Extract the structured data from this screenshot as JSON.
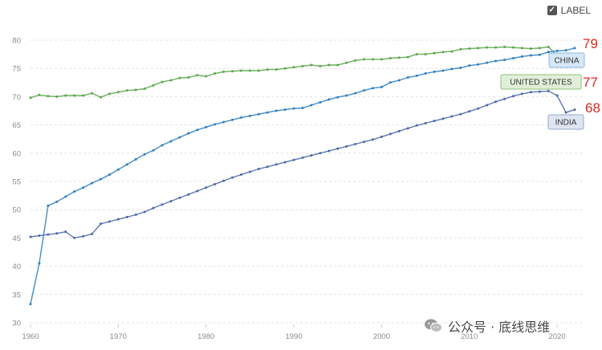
{
  "toggle": {
    "label": "LABEL",
    "checked": true
  },
  "watermark": "公众号 · 底线思维",
  "chart_data": {
    "type": "line",
    "title": "",
    "xlabel": "",
    "ylabel": "",
    "xlim": [
      1960,
      2022
    ],
    "ylim": [
      30,
      80
    ],
    "x_ticks": [
      1960,
      1970,
      1980,
      1990,
      2000,
      2010,
      2020
    ],
    "y_ticks": [
      30,
      35,
      40,
      45,
      50,
      55,
      60,
      65,
      70,
      75,
      80
    ],
    "grid": true,
    "series": [
      {
        "name": "UNITED STATES",
        "color": "#5aa64a",
        "end_value": "77",
        "label_fill": "#e1efd8",
        "label_stroke": "#8cc27a",
        "label_text_color": "#333333",
        "x": [
          1960,
          1961,
          1962,
          1963,
          1964,
          1965,
          1966,
          1967,
          1968,
          1969,
          1970,
          1971,
          1972,
          1973,
          1974,
          1975,
          1976,
          1977,
          1978,
          1979,
          1980,
          1981,
          1982,
          1983,
          1984,
          1985,
          1986,
          1987,
          1988,
          1989,
          1990,
          1991,
          1992,
          1993,
          1994,
          1995,
          1996,
          1997,
          1998,
          1999,
          2000,
          2001,
          2002,
          2003,
          2004,
          2005,
          2006,
          2007,
          2008,
          2009,
          2010,
          2011,
          2012,
          2013,
          2014,
          2015,
          2016,
          2017,
          2018,
          2019,
          2020,
          2021,
          2022
        ],
        "y": [
          69.8,
          70.3,
          70.1,
          70.0,
          70.2,
          70.2,
          70.2,
          70.6,
          69.9,
          70.5,
          70.8,
          71.1,
          71.2,
          71.4,
          72.0,
          72.6,
          72.9,
          73.3,
          73.4,
          73.8,
          73.6,
          74.1,
          74.4,
          74.5,
          74.6,
          74.6,
          74.6,
          74.8,
          74.8,
          75.0,
          75.2,
          75.4,
          75.6,
          75.4,
          75.6,
          75.6,
          76.0,
          76.4,
          76.6,
          76.6,
          76.6,
          76.8,
          76.9,
          77.0,
          77.5,
          77.5,
          77.7,
          77.9,
          78.0,
          78.4,
          78.5,
          78.6,
          78.7,
          78.7,
          78.8,
          78.7,
          78.6,
          78.5,
          78.6,
          78.8,
          77.3,
          76.4,
          77.4
        ]
      },
      {
        "name": "CHINA",
        "color": "#2f7fc0",
        "end_value": "79",
        "label_fill": "#d6e7f6",
        "label_stroke": "#8ab8e0",
        "label_text_color": "#333333",
        "x": [
          1960,
          1961,
          1962,
          1963,
          1964,
          1965,
          1966,
          1967,
          1968,
          1969,
          1970,
          1971,
          1972,
          1973,
          1974,
          1975,
          1976,
          1977,
          1978,
          1979,
          1980,
          1981,
          1982,
          1983,
          1984,
          1985,
          1986,
          1987,
          1988,
          1989,
          1990,
          1991,
          1992,
          1993,
          1994,
          1995,
          1996,
          1997,
          1998,
          1999,
          2000,
          2001,
          2002,
          2003,
          2004,
          2005,
          2006,
          2007,
          2008,
          2009,
          2010,
          2011,
          2012,
          2013,
          2014,
          2015,
          2016,
          2017,
          2018,
          2019,
          2020,
          2021,
          2022
        ],
        "y": [
          33.3,
          40.5,
          50.7,
          51.4,
          52.3,
          53.2,
          53.9,
          54.7,
          55.4,
          56.2,
          57.1,
          58.0,
          58.9,
          59.8,
          60.5,
          61.4,
          62.1,
          62.8,
          63.5,
          64.1,
          64.6,
          65.1,
          65.5,
          65.9,
          66.3,
          66.6,
          66.9,
          67.2,
          67.5,
          67.7,
          67.9,
          68.0,
          68.5,
          69.0,
          69.5,
          69.9,
          70.2,
          70.6,
          71.1,
          71.5,
          71.7,
          72.5,
          72.9,
          73.4,
          73.7,
          74.1,
          74.4,
          74.6,
          74.9,
          75.1,
          75.5,
          75.7,
          76.0,
          76.3,
          76.5,
          76.8,
          77.1,
          77.3,
          77.4,
          77.9,
          78.1,
          78.2,
          78.6
        ]
      },
      {
        "name": "INDIA",
        "color": "#4a69a8",
        "end_value": "68",
        "label_fill": "#dfe4f1",
        "label_stroke": "#97a8cc",
        "label_text_color": "#333333",
        "x": [
          1960,
          1961,
          1962,
          1963,
          1964,
          1965,
          1966,
          1967,
          1968,
          1969,
          1970,
          1971,
          1972,
          1973,
          1974,
          1975,
          1976,
          1977,
          1978,
          1979,
          1980,
          1981,
          1982,
          1983,
          1984,
          1985,
          1986,
          1987,
          1988,
          1989,
          1990,
          1991,
          1992,
          1993,
          1994,
          1995,
          1996,
          1997,
          1998,
          1999,
          2000,
          2001,
          2002,
          2003,
          2004,
          2005,
          2006,
          2007,
          2008,
          2009,
          2010,
          2011,
          2012,
          2013,
          2014,
          2015,
          2016,
          2017,
          2018,
          2019,
          2020,
          2021,
          2022
        ],
        "y": [
          45.2,
          45.4,
          45.6,
          45.8,
          46.1,
          45.0,
          45.3,
          45.7,
          47.5,
          47.9,
          48.3,
          48.7,
          49.1,
          49.6,
          50.3,
          50.9,
          51.5,
          52.1,
          52.7,
          53.3,
          53.9,
          54.5,
          55.1,
          55.7,
          56.2,
          56.7,
          57.2,
          57.6,
          58.0,
          58.4,
          58.8,
          59.2,
          59.6,
          60.0,
          60.4,
          60.8,
          61.2,
          61.6,
          62.0,
          62.4,
          62.9,
          63.4,
          63.9,
          64.4,
          64.9,
          65.3,
          65.7,
          66.1,
          66.5,
          66.9,
          67.4,
          67.9,
          68.5,
          69.1,
          69.6,
          70.1,
          70.5,
          70.8,
          70.9,
          71.0,
          70.2,
          67.2,
          67.7
        ]
      }
    ]
  }
}
